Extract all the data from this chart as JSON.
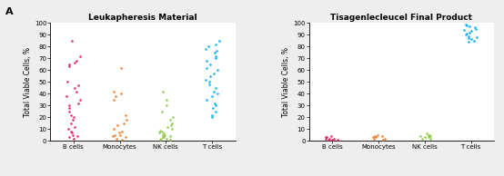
{
  "left_title": "Leukapheresis Material",
  "right_title": "Tisagenlecleucel Final Product",
  "ylabel": "Total Viable Cells, %",
  "panel_label": "A",
  "ylim": [
    0,
    100
  ],
  "yticks": [
    0,
    10,
    20,
    30,
    40,
    50,
    60,
    70,
    80,
    90,
    100
  ],
  "left_categories": [
    "B cells",
    "Monocytes",
    "NK cells",
    "T cells"
  ],
  "right_categories": [
    "B cells",
    "Monocytes",
    "NK cells",
    "T cells"
  ],
  "colors": {
    "B cells": "#e8185a",
    "Monocytes": "#f07820",
    "NK cells": "#8dc63f",
    "T cells": "#00aeef"
  },
  "left_data": {
    "B cells": [
      85,
      72,
      68,
      66,
      65,
      63,
      50,
      47,
      45,
      42,
      38,
      35,
      32,
      30,
      28,
      25,
      22,
      20,
      18,
      15,
      12,
      10,
      8,
      7,
      5,
      4,
      3,
      2
    ],
    "Monocytes": [
      62,
      42,
      40,
      38,
      35,
      22,
      18,
      15,
      13,
      10,
      8,
      7,
      5,
      5,
      4,
      3,
      2,
      1
    ],
    "NK cells": [
      42,
      35,
      30,
      25,
      20,
      18,
      15,
      13,
      12,
      10,
      9,
      8,
      7,
      6,
      5,
      5,
      4,
      3,
      3,
      2,
      2,
      1,
      1
    ],
    "T cells": [
      85,
      82,
      80,
      78,
      76,
      75,
      72,
      70,
      68,
      65,
      62,
      60,
      57,
      55,
      52,
      50,
      48,
      45,
      42,
      40,
      38,
      35,
      32,
      30,
      28,
      25,
      22,
      20
    ]
  },
  "right_data": {
    "B cells": [
      4,
      3,
      3,
      2,
      2,
      2,
      1,
      1,
      1
    ],
    "Monocytes": [
      5,
      4,
      4,
      3,
      3,
      2,
      2,
      1
    ],
    "NK cells": [
      6,
      5,
      5,
      4,
      4,
      3,
      3,
      2,
      2
    ],
    "T cells": [
      99,
      98,
      97,
      96,
      95,
      94,
      93,
      92,
      91,
      90,
      89,
      88,
      87,
      86,
      85,
      84
    ]
  },
  "background_color": "#eeeeee",
  "plot_background": "#ffffff",
  "title_fontsize": 6.5,
  "label_fontsize": 5.5,
  "tick_fontsize": 5,
  "panel_fontsize": 8
}
